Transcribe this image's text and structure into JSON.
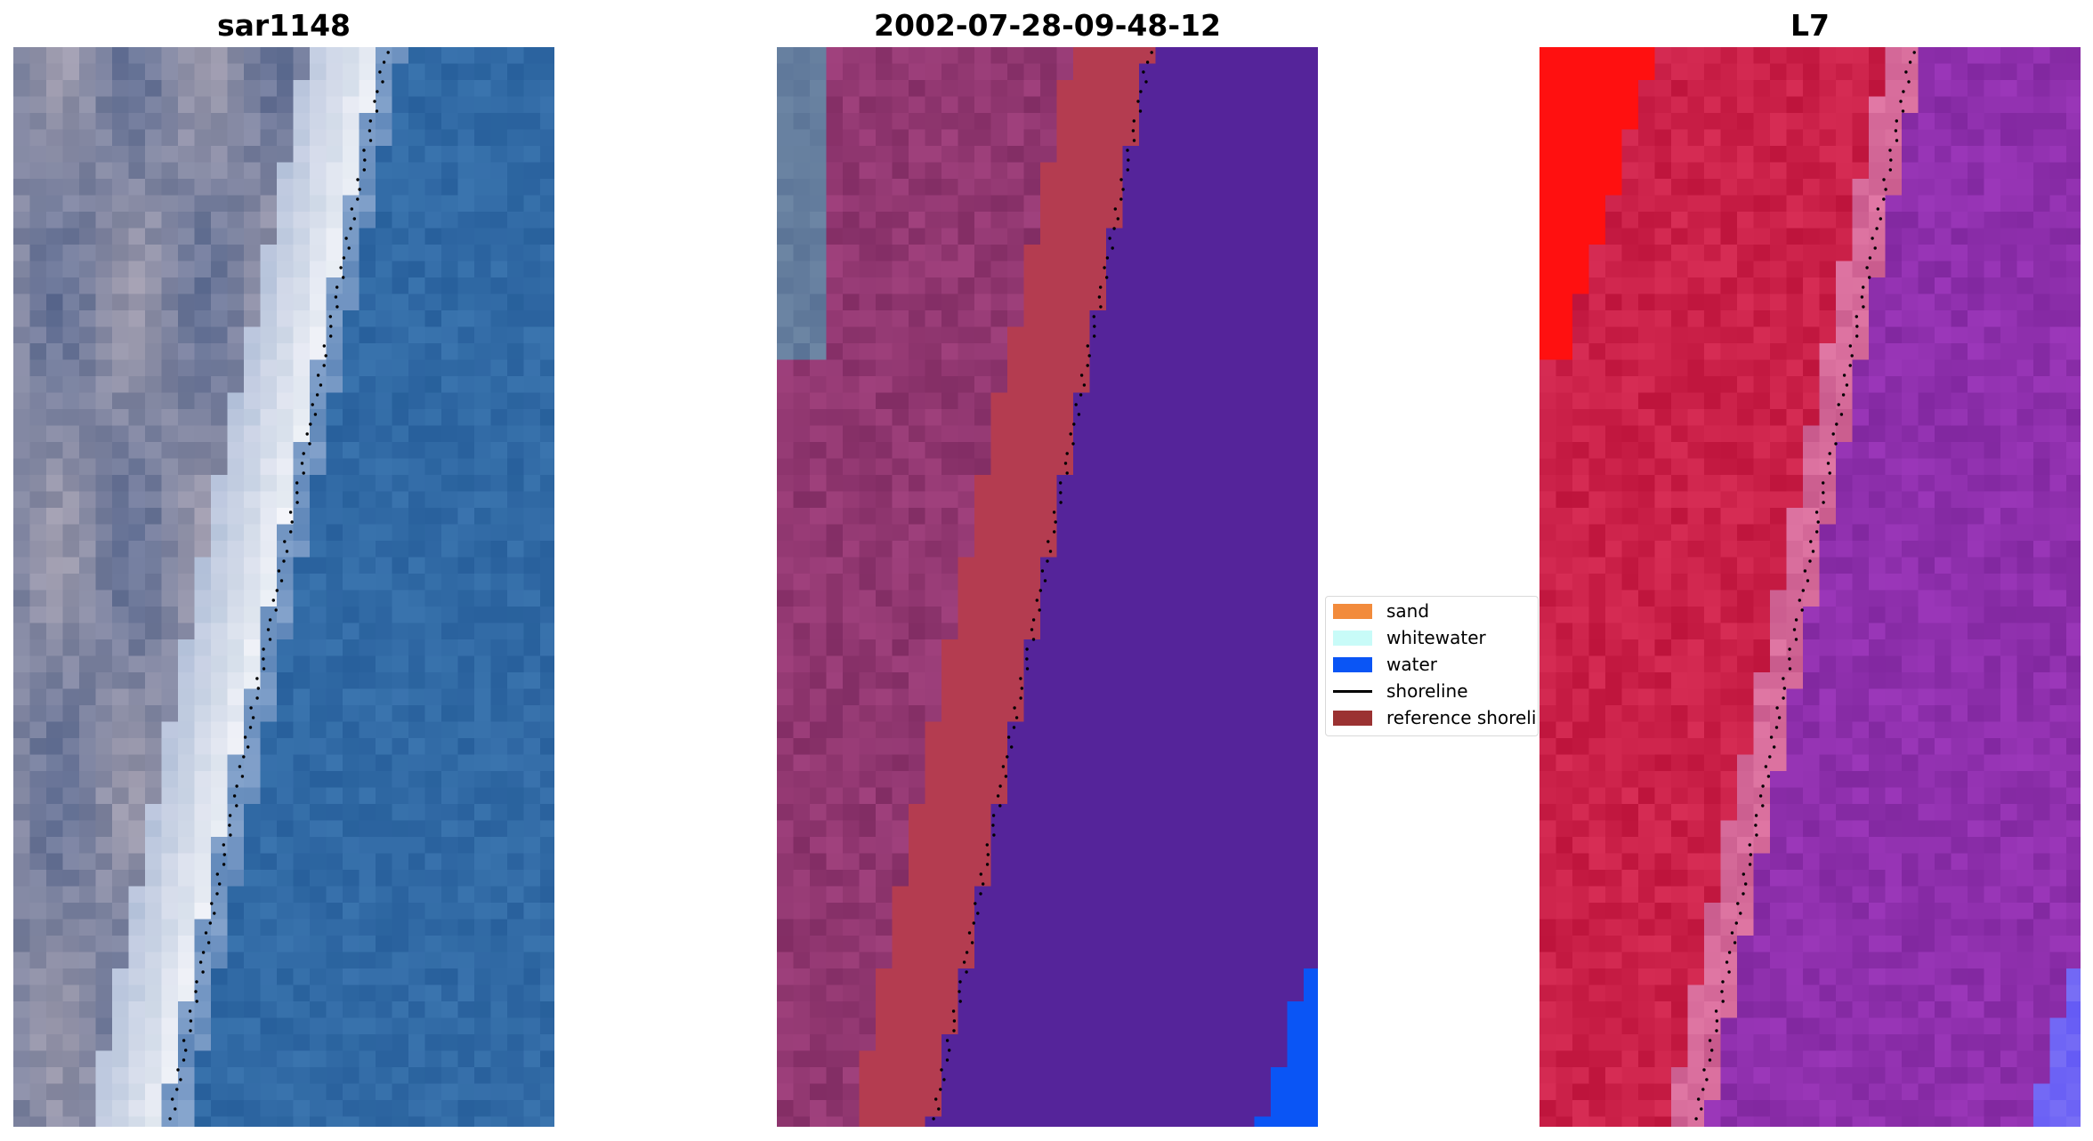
{
  "panels": [
    {
      "title": "sar1148"
    },
    {
      "title": "2002-07-28-09-48-12"
    },
    {
      "title": "L7"
    }
  ],
  "legend": {
    "items": [
      {
        "label": "sand",
        "color": "#f28b3c",
        "kind": "patch"
      },
      {
        "label": "whitewater",
        "color": "#c8fbf8",
        "kind": "patch"
      },
      {
        "label": "water",
        "color": "#0a55f5",
        "kind": "patch"
      },
      {
        "label": "shoreline",
        "color": "#000000",
        "kind": "line"
      },
      {
        "label": "reference shoreline",
        "color": "#9b3232",
        "kind": "patch"
      }
    ]
  },
  "colors": {
    "sea_blue": "#2c64a0",
    "beach_white": "#f2f6fa",
    "land_grey": "#7b84a0",
    "class_water": "#55249a",
    "class_sand": "#b43c50",
    "class_land": "#88306a",
    "l7_land": "#c21840",
    "l7_sea": "#8a2c9e",
    "l7_bright_red": "#ff1010",
    "shoreline_dots": "#000000"
  }
}
